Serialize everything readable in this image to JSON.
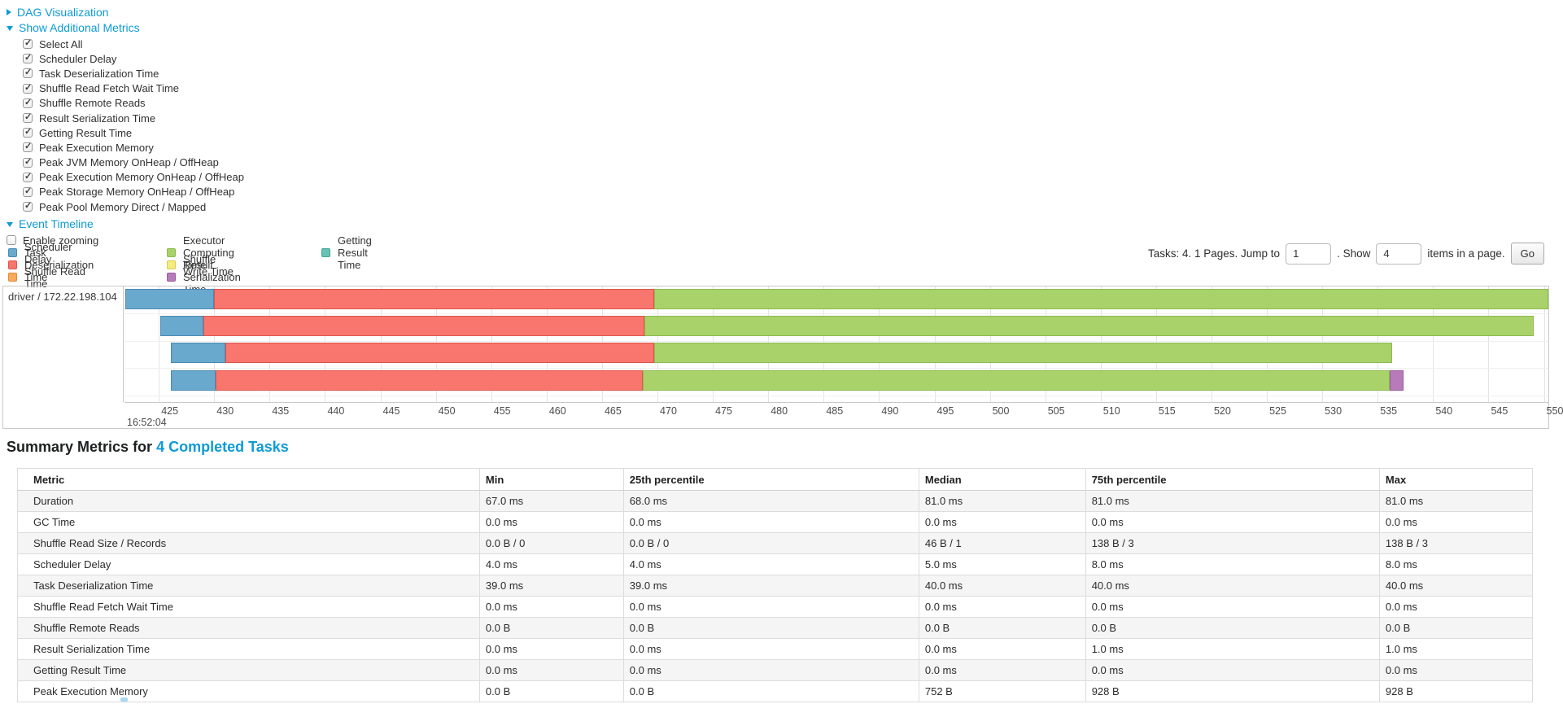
{
  "sections": {
    "dag_label": "DAG Visualization",
    "metrics_label": "Show Additional Metrics",
    "timeline_label": "Event Timeline",
    "enable_zooming_label": "Enable zooming",
    "metric_checkboxes": [
      "Select All",
      "Scheduler Delay",
      "Task Deserialization Time",
      "Shuffle Read Fetch Wait Time",
      "Shuffle Remote Reads",
      "Result Serialization Time",
      "Getting Result Time",
      "Peak Execution Memory",
      "Peak JVM Memory OnHeap / OffHeap",
      "Peak Execution Memory OnHeap / OffHeap",
      "Peak Storage Memory OnHeap / OffHeap",
      "Peak Pool Memory Direct / Mapped"
    ]
  },
  "colors": {
    "scheduler_delay": {
      "fill": "#6AA9CE",
      "stroke": "#4A89B4"
    },
    "task_deserialization": {
      "fill": "#F8766D",
      "stroke": "#DE554C"
    },
    "shuffle_read": {
      "fill": "#F8A95B",
      "stroke": "#DE8A3C"
    },
    "executor_computing": {
      "fill": "#A9D26B",
      "stroke": "#8CBA4F"
    },
    "shuffle_write": {
      "fill": "#F5EB7F",
      "stroke": "#D9CB4E"
    },
    "result_serialization": {
      "fill": "#B77BB9",
      "stroke": "#9C5AA0"
    },
    "getting_result": {
      "fill": "#68C2B4",
      "stroke": "#4AA394"
    },
    "link_blue": "#0d9bd7"
  },
  "legend": {
    "columns": [
      [
        {
          "key": "scheduler_delay",
          "label": "Scheduler Delay"
        },
        {
          "key": "task_deserialization",
          "label": "Task Deserialization Time"
        },
        {
          "key": "shuffle_read",
          "label": "Shuffle Read Time"
        }
      ],
      [
        {
          "key": "executor_computing",
          "label": "Executor Computing Time"
        },
        {
          "key": "shuffle_write",
          "label": "Shuffle Write Time"
        },
        {
          "key": "result_serialization",
          "label": "Result Serialization Time"
        }
      ],
      [
        {
          "key": "getting_result",
          "label": "Getting Result Time"
        }
      ]
    ]
  },
  "pagination": {
    "tasks_text": "Tasks: 4. 1 Pages. Jump to",
    "jump_value": "1",
    "show_text": ". Show",
    "show_value": "4",
    "items_text": "items in a page.",
    "go_label": "Go"
  },
  "chart_data": {
    "type": "timeline",
    "group_label": "driver / 172.22.198.104",
    "axis": {
      "unit": "ms within second shown below first tick",
      "min": 421.9,
      "max": 550.4,
      "tick_start": 425,
      "tick_step": 5,
      "tick_end": 550,
      "time_label": "16:52:04"
    },
    "tasks": [
      {
        "name": "task-bar-1",
        "segments": [
          {
            "type": "scheduler_delay",
            "start": 422.0,
            "end": 430.0
          },
          {
            "type": "task_deserialization",
            "start": 430.0,
            "end": 469.7
          },
          {
            "type": "executor_computing",
            "start": 469.7,
            "end": 550.4
          }
        ]
      },
      {
        "name": "task-bar-2",
        "segments": [
          {
            "type": "scheduler_delay",
            "start": 425.1,
            "end": 429.0
          },
          {
            "type": "task_deserialization",
            "start": 429.0,
            "end": 468.8
          },
          {
            "type": "executor_computing",
            "start": 468.8,
            "end": 549.1
          }
        ]
      },
      {
        "name": "task-bar-3",
        "segments": [
          {
            "type": "scheduler_delay",
            "start": 426.1,
            "end": 431.0
          },
          {
            "type": "task_deserialization",
            "start": 431.0,
            "end": 469.7
          },
          {
            "type": "executor_computing",
            "start": 469.7,
            "end": 536.3
          }
        ]
      },
      {
        "name": "task-bar-4",
        "segments": [
          {
            "type": "scheduler_delay",
            "start": 426.1,
            "end": 430.1
          },
          {
            "type": "task_deserialization",
            "start": 430.1,
            "end": 468.7
          },
          {
            "type": "executor_computing",
            "start": 468.7,
            "end": 536.1
          },
          {
            "type": "result_serialization",
            "start": 536.1,
            "end": 537.3
          }
        ]
      }
    ]
  },
  "summary": {
    "title_prefix": "Summary Metrics for ",
    "title_link": "4 Completed Tasks",
    "columns": [
      "Metric",
      "Min",
      "25th percentile",
      "Median",
      "75th percentile",
      "Max"
    ],
    "rows": [
      {
        "metric": "Duration",
        "values": [
          "67.0 ms",
          "68.0 ms",
          "81.0 ms",
          "81.0 ms",
          "81.0 ms"
        ]
      },
      {
        "metric": "GC Time",
        "values": [
          "0.0 ms",
          "0.0 ms",
          "0.0 ms",
          "0.0 ms",
          "0.0 ms"
        ]
      },
      {
        "metric": "Shuffle Read Size / Records",
        "values": [
          "0.0 B / 0",
          "0.0 B / 0",
          "46 B / 1",
          "138 B / 3",
          "138 B / 3"
        ]
      },
      {
        "metric": "Scheduler Delay",
        "values": [
          "4.0 ms",
          "4.0 ms",
          "5.0 ms",
          "8.0 ms",
          "8.0 ms"
        ]
      },
      {
        "metric": "Task Deserialization Time",
        "values": [
          "39.0 ms",
          "39.0 ms",
          "40.0 ms",
          "40.0 ms",
          "40.0 ms"
        ]
      },
      {
        "metric": "Shuffle Read Fetch Wait Time",
        "values": [
          "0.0 ms",
          "0.0 ms",
          "0.0 ms",
          "0.0 ms",
          "0.0 ms"
        ]
      },
      {
        "metric": "Shuffle Remote Reads",
        "values": [
          "0.0 B",
          "0.0 B",
          "0.0 B",
          "0.0 B",
          "0.0 B"
        ]
      },
      {
        "metric": "Result Serialization Time",
        "values": [
          "0.0 ms",
          "0.0 ms",
          "0.0 ms",
          "1.0 ms",
          "1.0 ms"
        ]
      },
      {
        "metric": "Getting Result Time",
        "values": [
          "0.0 ms",
          "0.0 ms",
          "0.0 ms",
          "0.0 ms",
          "0.0 ms"
        ]
      },
      {
        "metric": "Peak Execution Memory",
        "values": [
          "0.0 B",
          "0.0 B",
          "752 B",
          "928 B",
          "928 B"
        ]
      }
    ]
  }
}
